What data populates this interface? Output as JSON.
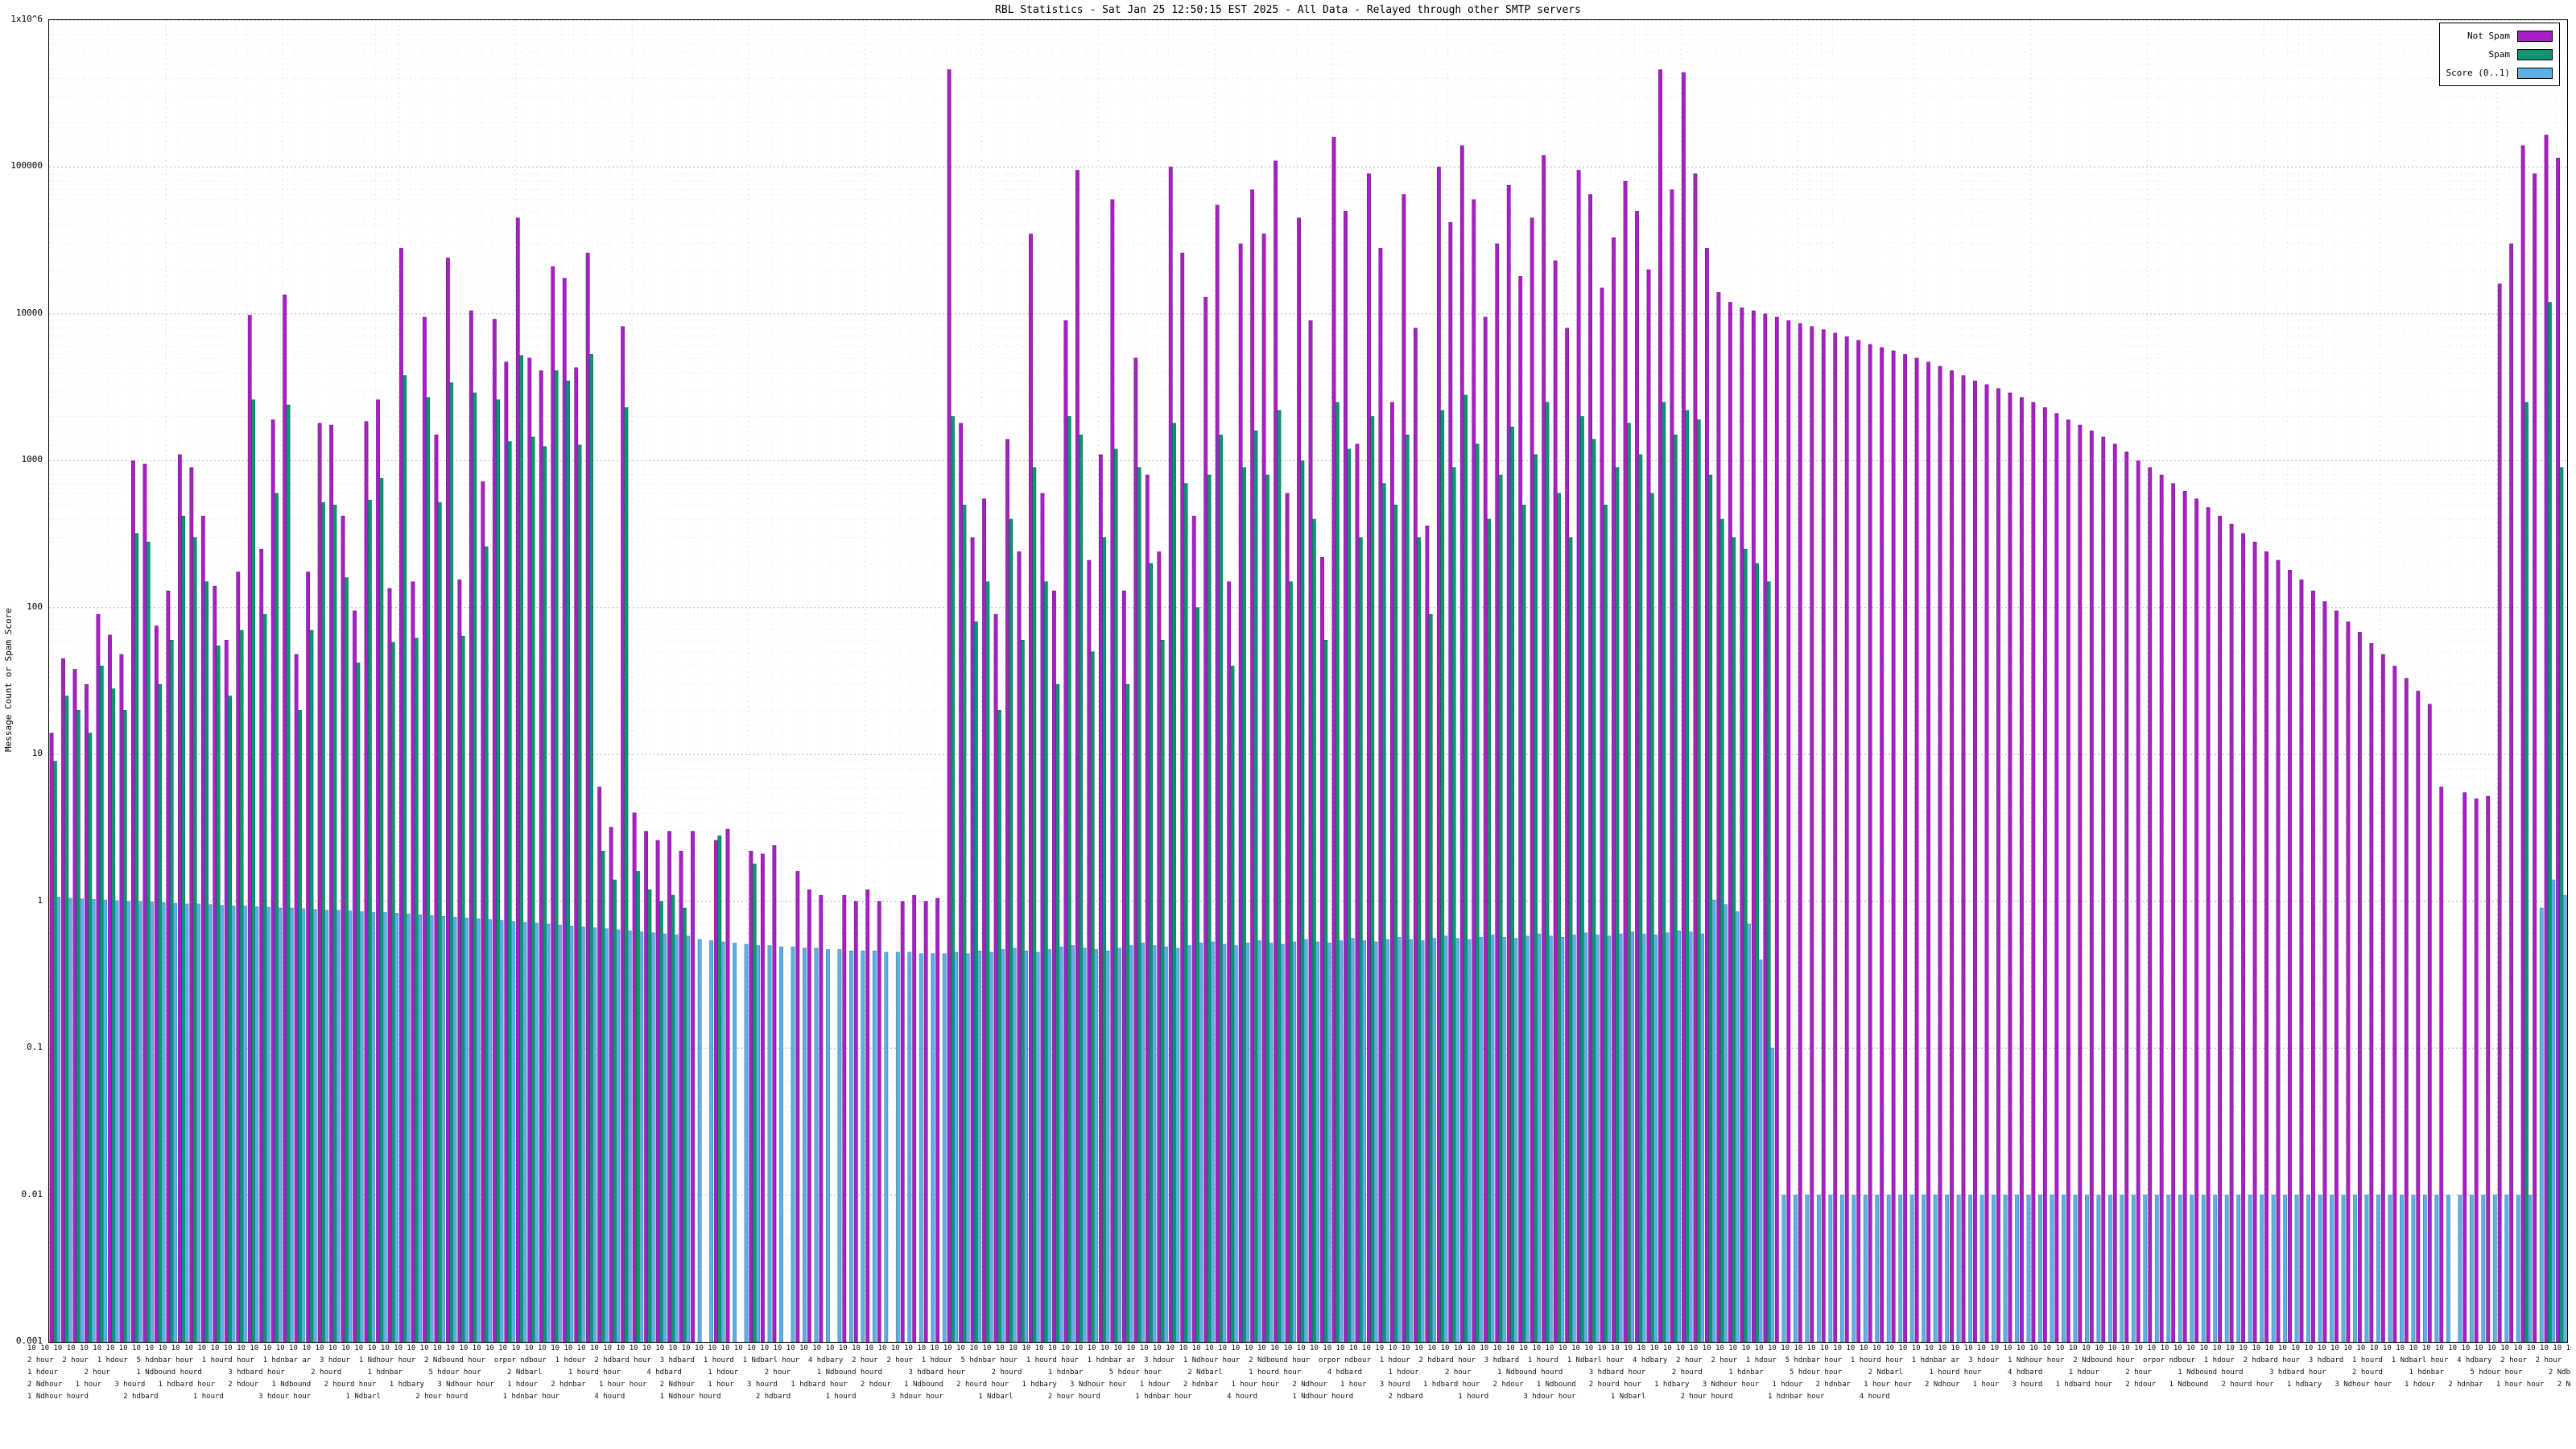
{
  "title": "RBL Statistics - Sat Jan 25 12:50:15 EST 2025 - All Data - Relayed through other SMTP servers",
  "yaxis": {
    "label": "Message Count or Spam Score",
    "ticks": [
      {
        "label": "1x10^6",
        "value": 1000000
      },
      {
        "label": "100000",
        "value": 100000
      },
      {
        "label": "10000",
        "value": 10000
      },
      {
        "label": "1000",
        "value": 1000
      },
      {
        "label": "100",
        "value": 100
      },
      {
        "label": "10",
        "value": 10
      },
      {
        "label": "1",
        "value": 1
      },
      {
        "label": "0.1",
        "value": 0.1
      },
      {
        "label": "0.01",
        "value": 0.01
      },
      {
        "label": "0.001",
        "value": 0.001
      }
    ]
  },
  "xaxis": {
    "rows": [
      {
        "fragments": [
          "10"
        ],
        "repeat": 216,
        "sep": " "
      },
      {
        "fragments": [
          "2 hour",
          "2 hour",
          "1 hdour",
          "5 hdnbar hour",
          "1 hourd hour",
          "1 hdnbar ar",
          "3 hdour",
          "1 Ndhour hour",
          "2 Ndbound hour",
          "orpor ndbour",
          "1 hdour",
          "2 hdbard hour",
          "3 hdbard",
          "1 hourd",
          "1 Ndbarl hour",
          "4 hdbary"
        ],
        "repeat": 6,
        "sep": "  "
      },
      {
        "fragments": [
          "1 hdour",
          "2 hour",
          "1 Ndbound hourd",
          "3 hdbard hour",
          "2 hourd",
          "1 hdnbar",
          "5 hdour hour",
          "2 Ndbarl",
          "1 hourd hour",
          "4 hdbard"
        ],
        "repeat": 4,
        "sep": "      "
      },
      {
        "fragments": [
          "2 Ndhour",
          "1 hour",
          "3 hourd",
          "1 hdbard hour",
          "2 hdour",
          "1 Ndbound",
          "2 hourd hour",
          "1 hdbary",
          "3 Ndhour hour",
          "1 hdour",
          "2 hdnbar",
          "1 hour hour"
        ],
        "repeat": 5,
        "sep": "   "
      },
      {
        "fragments": [
          "1 Ndhour hourd",
          "2 hdbard",
          "1 hourd",
          "3 hdour hour",
          "1 Ndbarl",
          "2 hour hourd",
          "1 hdnbar hour",
          "4 hourd"
        ],
        "repeat": 3,
        "sep": "        "
      }
    ]
  },
  "chart_data": {
    "type": "bar",
    "title": "RBL Statistics - Sat Jan 25 12:50:15 EST 2025 - All Data - Relayed through other SMTP servers",
    "xlabel": "",
    "ylabel": "Message Count or Spam Score",
    "y_scale": "log10",
    "ylim": [
      0.001,
      1000000
    ],
    "grid": true,
    "legend_position": "top-right",
    "series": [
      {
        "name": "Not Spam",
        "color": "#a820c4",
        "values": [
          14,
          45,
          38,
          30,
          90,
          65,
          48,
          1000,
          950,
          75,
          130,
          1100,
          900,
          420,
          140,
          60,
          175,
          9800,
          250,
          1900,
          13500,
          48,
          175,
          1800,
          1750,
          420,
          95,
          1850,
          2600,
          135,
          28000,
          150,
          9500,
          1500,
          24000,
          155,
          10500,
          720,
          9200,
          4700,
          45000,
          5000,
          4100,
          21000,
          17500,
          4300,
          26000,
          6,
          3.2,
          8200,
          4,
          3,
          2.6,
          3,
          2.2,
          3,
          0,
          2.6,
          3.1,
          0,
          2.2,
          2.1,
          2.4,
          0,
          1.6,
          1.2,
          1.1,
          0,
          1.1,
          1,
          1.2,
          1,
          0,
          1,
          1.1,
          1,
          1.05,
          460000,
          1800,
          300,
          550,
          90,
          1400,
          240,
          35000,
          600,
          130,
          9000,
          95000,
          210,
          1100,
          60000,
          130,
          5000,
          800,
          240,
          100000,
          26000,
          420,
          13000,
          55000,
          150,
          30000,
          70000,
          35000,
          110000,
          600,
          45000,
          9000,
          220,
          160000,
          50000,
          1300,
          90000,
          28000,
          2500,
          65000,
          8000,
          360,
          100000,
          42000,
          140000,
          60000,
          9500,
          30000,
          75000,
          18000,
          45000,
          120000,
          23000,
          8000,
          95000,
          65000,
          15000,
          33000,
          80000,
          50000,
          20000,
          460000,
          70000,
          440000,
          90000,
          28000,
          14000,
          12000,
          11000,
          10500,
          10000,
          9500,
          9000,
          8600,
          8200,
          7800,
          7400,
          7000,
          6600,
          6200,
          5900,
          5600,
          5300,
          5000,
          4700,
          4400,
          4100,
          3800,
          3500,
          3300,
          3100,
          2900,
          2700,
          2500,
          2300,
          2100,
          1900,
          1750,
          1600,
          1450,
          1300,
          1150,
          1000,
          900,
          800,
          700,
          620,
          550,
          480,
          420,
          370,
          320,
          280,
          240,
          210,
          180,
          155,
          130,
          110,
          95,
          80,
          68,
          57,
          48,
          40,
          33,
          27,
          22,
          6,
          0,
          5.5,
          5,
          5.2,
          16000,
          30000,
          140000,
          90000,
          165000,
          115000
        ]
      },
      {
        "name": "Spam",
        "color": "#0a9670",
        "values": [
          9,
          25,
          20,
          14,
          40,
          28,
          20,
          320,
          280,
          30,
          60,
          420,
          300,
          150,
          55,
          25,
          70,
          2600,
          90,
          600,
          2400,
          20,
          70,
          520,
          500,
          160,
          42,
          540,
          760,
          58,
          3800,
          62,
          2700,
          520,
          3400,
          64,
          2900,
          260,
          2600,
          1350,
          5200,
          1450,
          1250,
          4100,
          3500,
          1280,
          5300,
          2.2,
          1.4,
          2300,
          1.6,
          1.2,
          1,
          1.1,
          0.9,
          0,
          0,
          2.8,
          0,
          0,
          1.8,
          0,
          0,
          0,
          0,
          0,
          0,
          0,
          0,
          0,
          0,
          0,
          0,
          0,
          0,
          0,
          0,
          2000,
          500,
          80,
          150,
          20,
          400,
          60,
          900,
          150,
          30,
          2000,
          1500,
          50,
          300,
          1200,
          30,
          900,
          200,
          60,
          1800,
          700,
          100,
          800,
          1500,
          40,
          900,
          1600,
          800,
          2200,
          150,
          1000,
          400,
          60,
          2500,
          1200,
          300,
          2000,
          700,
          500,
          1500,
          300,
          90,
          2200,
          900,
          2800,
          1300,
          400,
          800,
          1700,
          500,
          1100,
          2500,
          600,
          300,
          2000,
          1400,
          500,
          900,
          1800,
          1100,
          600,
          2500,
          1500,
          2200,
          1900,
          800,
          400,
          300,
          250,
          200,
          150,
          0,
          0,
          0,
          0,
          0,
          0,
          0,
          0,
          0,
          0,
          0,
          0,
          0,
          0,
          0,
          0,
          0,
          0,
          0,
          0,
          0,
          0,
          0,
          0,
          0,
          0,
          0,
          0,
          0,
          0,
          0,
          0,
          0,
          0,
          0,
          0,
          0,
          0,
          0,
          0,
          0,
          0,
          0,
          0,
          0,
          0,
          0,
          0,
          0,
          0,
          0,
          0,
          0,
          0,
          0,
          0,
          0,
          0,
          0,
          0,
          0,
          0,
          0,
          0,
          2500,
          0,
          12000,
          900
        ]
      },
      {
        "name": "Score (0..1)",
        "color": "#5cb0e2",
        "values": [
          1.07,
          1.05,
          1.04,
          1.03,
          1.02,
          1.01,
          1.0,
          1.0,
          0.99,
          0.98,
          0.97,
          0.96,
          0.96,
          0.95,
          0.94,
          0.93,
          0.93,
          0.92,
          0.91,
          0.9,
          0.9,
          0.89,
          0.88,
          0.87,
          0.87,
          0.86,
          0.85,
          0.84,
          0.84,
          0.83,
          0.82,
          0.81,
          0.8,
          0.79,
          0.78,
          0.77,
          0.76,
          0.75,
          0.74,
          0.73,
          0.72,
          0.71,
          0.7,
          0.69,
          0.68,
          0.67,
          0.66,
          0.65,
          0.64,
          0.63,
          0.62,
          0.61,
          0.6,
          0.59,
          0.58,
          0.55,
          0.54,
          0.53,
          0.52,
          0.51,
          0.5,
          0.5,
          0.49,
          0.49,
          0.48,
          0.48,
          0.47,
          0.47,
          0.46,
          0.46,
          0.46,
          0.45,
          0.45,
          0.45,
          0.44,
          0.44,
          0.44,
          0.45,
          0.44,
          0.46,
          0.45,
          0.47,
          0.48,
          0.46,
          0.45,
          0.47,
          0.49,
          0.5,
          0.48,
          0.47,
          0.46,
          0.48,
          0.5,
          0.52,
          0.5,
          0.49,
          0.48,
          0.5,
          0.52,
          0.53,
          0.51,
          0.5,
          0.52,
          0.54,
          0.52,
          0.51,
          0.53,
          0.55,
          0.53,
          0.52,
          0.54,
          0.56,
          0.54,
          0.53,
          0.55,
          0.57,
          0.55,
          0.54,
          0.56,
          0.58,
          0.56,
          0.55,
          0.57,
          0.59,
          0.57,
          0.56,
          0.58,
          0.6,
          0.58,
          0.57,
          0.59,
          0.61,
          0.59,
          0.58,
          0.6,
          0.62,
          0.6,
          0.59,
          0.61,
          0.63,
          0.62,
          0.6,
          1.02,
          0.95,
          0.85,
          0.7,
          0.4,
          0.1,
          0.01,
          0.01,
          0.01,
          0.01,
          0.01,
          0.01,
          0.01,
          0.01,
          0.01,
          0.01,
          0.01,
          0.01,
          0.01,
          0.01,
          0.01,
          0.01,
          0.01,
          0.01,
          0.01,
          0.01,
          0.01,
          0.01,
          0.01,
          0.01,
          0.01,
          0.01,
          0.01,
          0.01,
          0.01,
          0.01,
          0.01,
          0.01,
          0.01,
          0.01,
          0.01,
          0.01,
          0.01,
          0.01,
          0.01,
          0.01,
          0.01,
          0.01,
          0.01,
          0.01,
          0.01,
          0.01,
          0.01,
          0.01,
          0.01,
          0.01,
          0.01,
          0.01,
          0.01,
          0.01,
          0.01,
          0.01,
          0.01,
          0.01,
          0.01,
          0.01,
          0.01,
          0.01,
          0.01,
          0.01,
          0.01,
          0.9,
          1.4,
          1.1
        ]
      }
    ]
  }
}
